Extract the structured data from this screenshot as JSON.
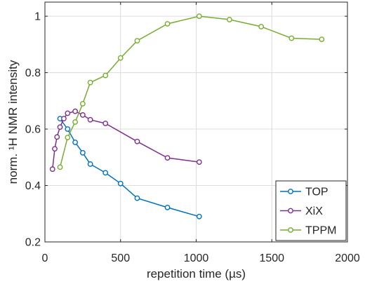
{
  "chart_data": {
    "type": "line",
    "xlabel": "repetition time (µs)",
    "ylabel": "norm. ¹H NMR intensity",
    "xlim": [
      0,
      2000
    ],
    "ylim": [
      0.2,
      1.05
    ],
    "x_ticks": [
      0,
      500,
      1000,
      1500,
      2000
    ],
    "y_ticks": [
      0.2,
      0.4,
      0.6,
      0.8,
      1.0
    ],
    "x_tick_labels": [
      "0",
      "500",
      "1000",
      "1500",
      "2000"
    ],
    "y_tick_labels": [
      "0.2",
      "0.4",
      "0.6",
      "0.8",
      "1"
    ],
    "grid": true,
    "legend_position": "bottom-right",
    "series": [
      {
        "name": "TOP",
        "color": "#0072BD",
        "x": [
          100,
          150,
          200,
          250,
          300,
          400,
          500,
          610,
          810,
          1020
        ],
        "y": [
          0.637,
          0.6,
          0.553,
          0.516,
          0.476,
          0.445,
          0.407,
          0.355,
          0.322,
          0.29
        ]
      },
      {
        "name": "XiX",
        "color": "#7E2F8E",
        "x": [
          50,
          65,
          80,
          100,
          125,
          150,
          200,
          250,
          300,
          400,
          610,
          810,
          1020
        ],
        "y": [
          0.458,
          0.53,
          0.572,
          0.607,
          0.637,
          0.656,
          0.663,
          0.65,
          0.633,
          0.62,
          0.556,
          0.498,
          0.483
        ]
      },
      {
        "name": "TPPM",
        "color": "#77AC30",
        "x": [
          100,
          150,
          200,
          250,
          300,
          400,
          500,
          610,
          810,
          1020,
          1220,
          1430,
          1630,
          1830
        ],
        "y": [
          0.465,
          0.57,
          0.625,
          0.69,
          0.765,
          0.79,
          0.852,
          0.913,
          0.973,
          1.0,
          0.988,
          0.963,
          0.922,
          0.918
        ]
      }
    ]
  }
}
